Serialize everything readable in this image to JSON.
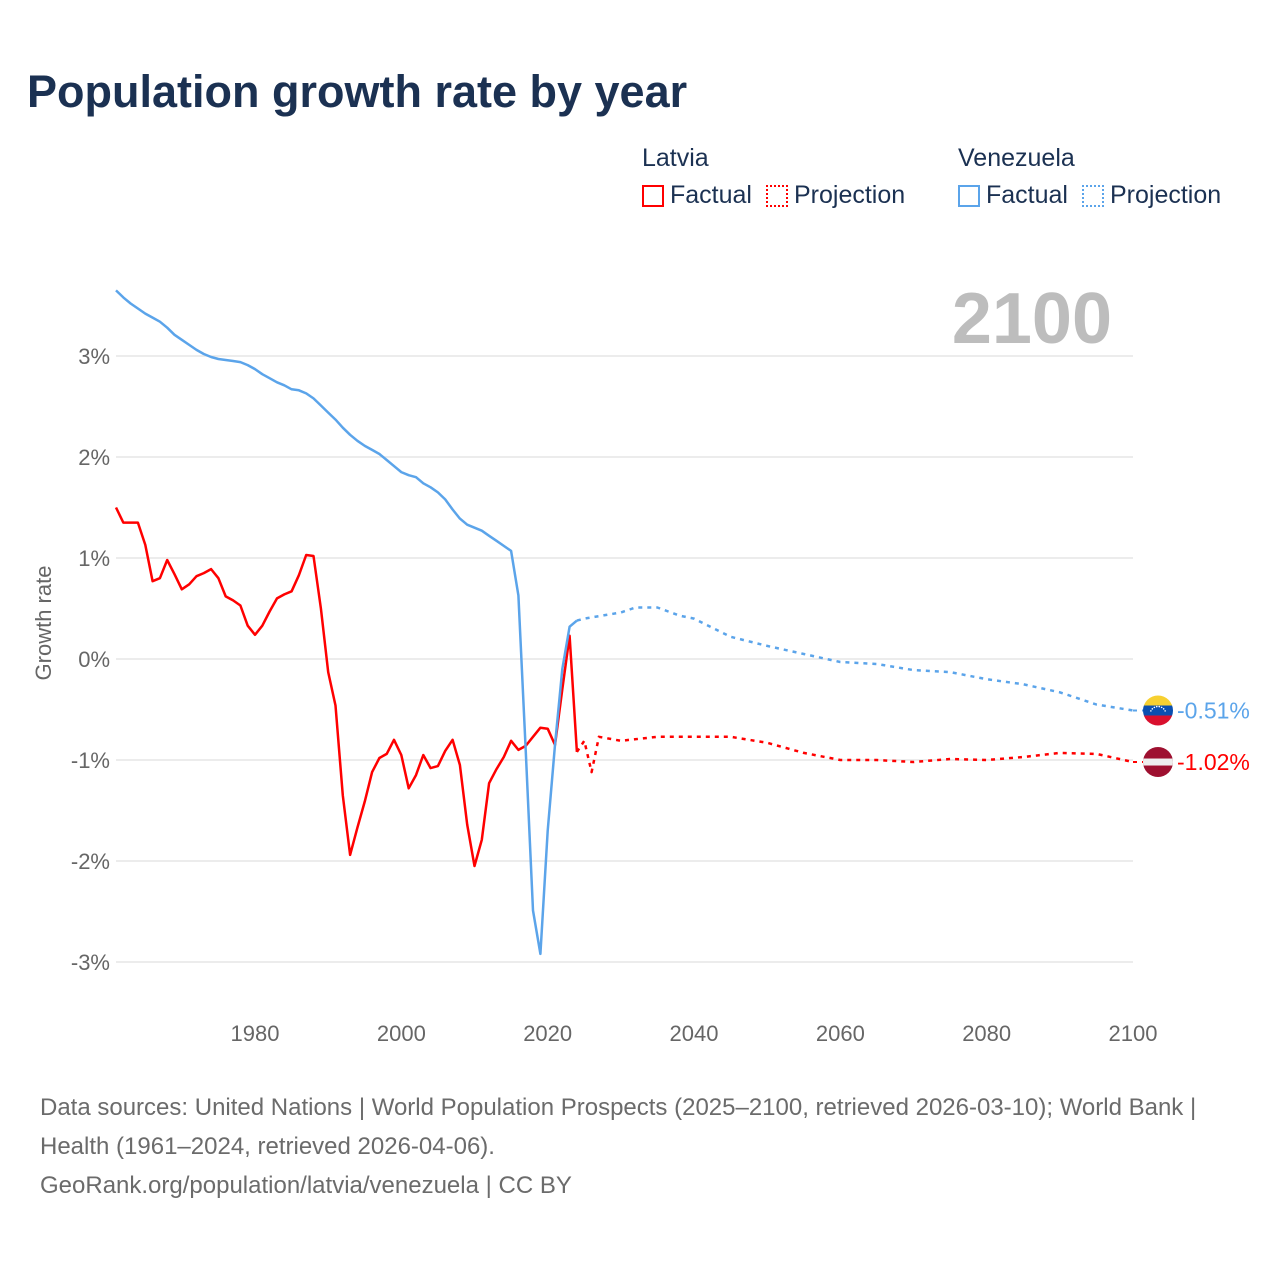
{
  "title": "Population growth rate by year",
  "legend": {
    "groups": [
      {
        "country": "Latvia",
        "factual": "Factual",
        "projection": "Projection",
        "color": "#ff0000"
      },
      {
        "country": "Venezuela",
        "factual": "Factual",
        "projection": "Projection",
        "color": "#5ba4ea"
      }
    ]
  },
  "year_label": "2100",
  "footer": {
    "sources": "Data sources: United Nations | World Population Prospects (2025–2100, retrieved 2026-03-10); World Bank | Health (1961–2024, retrieved 2026-04-06).",
    "credit": "GeoRank.org/population/latvia/venezuela | CC BY"
  },
  "chart_data": {
    "type": "line",
    "title": "Population growth rate by year",
    "xlabel": "",
    "ylabel": "Growth rate",
    "xlim": [
      1961,
      2100
    ],
    "ylim": [
      -3.5,
      3.7
    ],
    "x_ticks": [
      1980,
      2000,
      2020,
      2040,
      2060,
      2080,
      2100
    ],
    "x_tick_labels": [
      "1980",
      "2000",
      "2020",
      "2040",
      "2060",
      "2080",
      "2100"
    ],
    "y_ticks": [
      3,
      2,
      1,
      0,
      -1,
      -2,
      -3
    ],
    "y_tick_labels": [
      "3%",
      "2%",
      "1%",
      "0%",
      "-1%",
      "-2%",
      "-3%"
    ],
    "grid": true,
    "legend_position": "top-right",
    "series": [
      {
        "name": "Latvia Factual",
        "color": "#ff0000",
        "style": "solid",
        "x": [
          1961,
          1962,
          1963,
          1964,
          1965,
          1966,
          1967,
          1968,
          1969,
          1970,
          1971,
          1972,
          1973,
          1974,
          1975,
          1976,
          1977,
          1978,
          1979,
          1980,
          1981,
          1982,
          1983,
          1984,
          1985,
          1986,
          1987,
          1988,
          1989,
          1990,
          1991,
          1992,
          1993,
          1994,
          1995,
          1996,
          1997,
          1998,
          1999,
          2000,
          2001,
          2002,
          2003,
          2004,
          2005,
          2006,
          2007,
          2008,
          2009,
          2010,
          2011,
          2012,
          2013,
          2014,
          2015,
          2016,
          2017,
          2018,
          2019,
          2020,
          2021,
          2022,
          2023,
          2024
        ],
        "y": [
          1.5,
          1.35,
          1.35,
          1.35,
          1.13,
          0.77,
          0.8,
          0.98,
          0.84,
          0.69,
          0.74,
          0.82,
          0.85,
          0.89,
          0.8,
          0.62,
          0.58,
          0.53,
          0.33,
          0.24,
          0.33,
          0.47,
          0.6,
          0.64,
          0.67,
          0.83,
          1.03,
          1.02,
          0.5,
          -0.13,
          -0.46,
          -1.35,
          -1.94,
          -1.67,
          -1.41,
          -1.12,
          -0.98,
          -0.94,
          -0.8,
          -0.95,
          -1.28,
          -1.15,
          -0.95,
          -1.08,
          -1.06,
          -0.91,
          -0.8,
          -1.05,
          -1.64,
          -2.05,
          -1.79,
          -1.23,
          -1.09,
          -0.97,
          -0.81,
          -0.9,
          -0.86,
          -0.77,
          -0.68,
          -0.69,
          -0.85,
          -0.3,
          0.23,
          -0.92
        ]
      },
      {
        "name": "Latvia Projection",
        "color": "#ff0000",
        "style": "dotted",
        "x": [
          2024,
          2025,
          2026,
          2027,
          2030,
          2035,
          2040,
          2045,
          2050,
          2055,
          2060,
          2065,
          2070,
          2075,
          2080,
          2085,
          2090,
          2095,
          2100
        ],
        "y": [
          -0.92,
          -0.81,
          -1.12,
          -0.77,
          -0.81,
          -0.77,
          -0.77,
          -0.77,
          -0.83,
          -0.93,
          -1.0,
          -1.0,
          -1.02,
          -0.99,
          -1.0,
          -0.97,
          -0.93,
          -0.94,
          -1.02
        ]
      },
      {
        "name": "Venezuela Factual",
        "color": "#5ba4ea",
        "style": "solid",
        "x": [
          1961,
          1962,
          1963,
          1964,
          1965,
          1966,
          1967,
          1968,
          1969,
          1970,
          1971,
          1972,
          1973,
          1974,
          1975,
          1976,
          1977,
          1978,
          1979,
          1980,
          1981,
          1982,
          1983,
          1984,
          1985,
          1986,
          1987,
          1988,
          1989,
          1990,
          1991,
          1992,
          1993,
          1994,
          1995,
          1996,
          1997,
          1998,
          1999,
          2000,
          2001,
          2002,
          2003,
          2004,
          2005,
          2006,
          2007,
          2008,
          2009,
          2010,
          2011,
          2012,
          2013,
          2014,
          2015,
          2016,
          2017,
          2018,
          2019,
          2020,
          2021,
          2022,
          2023,
          2024
        ],
        "y": [
          3.65,
          3.58,
          3.52,
          3.47,
          3.42,
          3.38,
          3.34,
          3.28,
          3.21,
          3.16,
          3.11,
          3.06,
          3.02,
          2.99,
          2.97,
          2.96,
          2.95,
          2.94,
          2.91,
          2.87,
          2.82,
          2.78,
          2.74,
          2.71,
          2.67,
          2.66,
          2.63,
          2.58,
          2.51,
          2.44,
          2.37,
          2.29,
          2.22,
          2.16,
          2.11,
          2.07,
          2.03,
          1.97,
          1.91,
          1.85,
          1.82,
          1.8,
          1.74,
          1.7,
          1.65,
          1.58,
          1.48,
          1.39,
          1.33,
          1.3,
          1.27,
          1.22,
          1.17,
          1.12,
          1.07,
          0.63,
          -0.9,
          -2.49,
          -2.92,
          -1.7,
          -0.85,
          -0.1,
          0.32,
          0.38
        ]
      },
      {
        "name": "Venezuela Projection",
        "color": "#5ba4ea",
        "style": "dotted",
        "x": [
          2024,
          2025,
          2030,
          2032,
          2035,
          2038,
          2040,
          2045,
          2050,
          2055,
          2060,
          2065,
          2070,
          2075,
          2080,
          2085,
          2090,
          2095,
          2100
        ],
        "y": [
          0.38,
          0.4,
          0.46,
          0.51,
          0.51,
          0.43,
          0.4,
          0.22,
          0.13,
          0.05,
          -0.03,
          -0.05,
          -0.11,
          -0.13,
          -0.2,
          -0.25,
          -0.33,
          -0.45,
          -0.51
        ]
      }
    ],
    "end_labels": [
      {
        "country": "Venezuela",
        "value": -0.51,
        "text": "-0.51%",
        "color": "#5ba4ea"
      },
      {
        "country": "Latvia",
        "value": -1.02,
        "text": "-1.02%",
        "color": "#ff0000"
      }
    ]
  }
}
